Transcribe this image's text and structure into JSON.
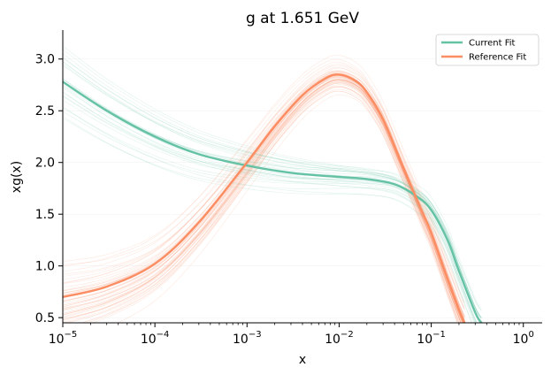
{
  "chart_data": {
    "type": "line",
    "title": "g at 1.651 GeV",
    "xlabel": "x",
    "ylabel": "xg(x)",
    "xscale": "log",
    "xlim": [
      1e-05,
      1.6
    ],
    "ylim": [
      0.45,
      3.28
    ],
    "grid": false,
    "legend_position": "top-right",
    "x_ticks": [
      {
        "value": 1e-05,
        "base": "10",
        "exp": "−5"
      },
      {
        "value": 0.0001,
        "base": "10",
        "exp": "−4"
      },
      {
        "value": 0.001,
        "base": "10",
        "exp": "−3"
      },
      {
        "value": 0.01,
        "base": "10",
        "exp": "−2"
      },
      {
        "value": 0.1,
        "base": "10",
        "exp": "−1"
      },
      {
        "value": 1,
        "base": "10",
        "exp": "0"
      }
    ],
    "y_ticks": [
      "0.5",
      "1.0",
      "1.5",
      "2.0",
      "2.5",
      "3.0"
    ],
    "series": [
      {
        "name": "Current Fit",
        "color": "#66c2a5",
        "x": [
          1e-05,
          3e-05,
          0.0001,
          0.0003,
          0.001,
          0.003,
          0.01,
          0.02,
          0.04,
          0.07,
          0.1,
          0.15,
          0.2,
          0.3,
          0.35
        ],
        "y": [
          2.78,
          2.5,
          2.25,
          2.08,
          1.97,
          1.9,
          1.86,
          1.84,
          1.79,
          1.67,
          1.54,
          1.25,
          0.95,
          0.55,
          0.45
        ]
      },
      {
        "name": "Reference Fit",
        "color": "#fc8d62",
        "x": [
          1e-05,
          3e-05,
          0.0001,
          0.0003,
          0.001,
          0.002,
          0.004,
          0.007,
          0.01,
          0.015,
          0.02,
          0.03,
          0.05,
          0.08,
          0.1,
          0.15,
          0.2,
          0.23
        ],
        "y": [
          0.7,
          0.8,
          1.02,
          1.42,
          2.0,
          2.35,
          2.65,
          2.81,
          2.85,
          2.79,
          2.68,
          2.42,
          1.95,
          1.52,
          1.32,
          0.88,
          0.58,
          0.45
        ]
      }
    ]
  }
}
